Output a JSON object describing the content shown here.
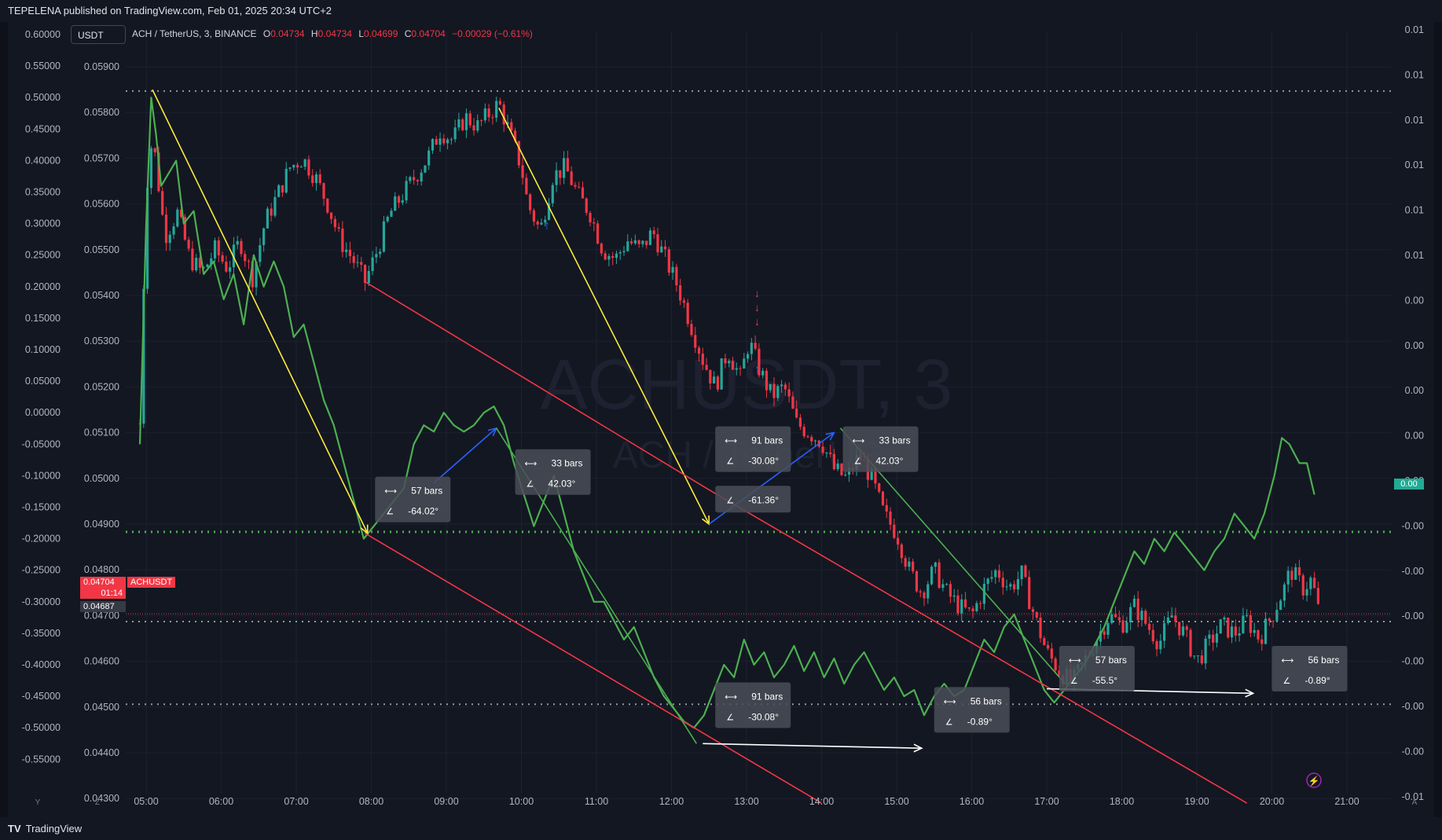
{
  "header": {
    "published": "TEPELENA published on TradingView.com, Feb 01, 2025 20:34 UTC+2"
  },
  "footer": {
    "brand": "TradingView"
  },
  "symbol_box": {
    "label": "USDT"
  },
  "legend": {
    "description": "ACH / TetherUS, 3, BINANCE",
    "o_label": "O",
    "o": "0.04734",
    "h_label": "H",
    "h": "0.04734",
    "l_label": "L",
    "l": "0.04699",
    "c_label": "C",
    "c": "0.04704",
    "change": "−0.00029 (−0.61%)"
  },
  "watermark": {
    "main": "ACHUSDT, 3",
    "sub": "ACH / TetherUS"
  },
  "price_tags": {
    "last": "0.04704",
    "symbol": "ACHUSDT",
    "countdown": "01:14",
    "prev": "0.04687",
    "right_value": "0.00"
  },
  "colors": {
    "up": "#26a69a",
    "down": "#f23645",
    "osc": "#4caf50",
    "yellow": "#ffeb3b",
    "red_line": "#f23645",
    "blue": "#2962ff",
    "white": "#ffffff",
    "green_dotted": "#4caf50"
  },
  "axes": {
    "osc_ticks": [
      "0.60000",
      "0.55000",
      "0.50000",
      "0.45000",
      "0.40000",
      "0.35000",
      "0.30000",
      "0.25000",
      "0.20000",
      "0.15000",
      "0.10000",
      "0.05000",
      "0.00000",
      "-0.05000",
      "-0.10000",
      "-0.15000",
      "-0.20000",
      "-0.25000",
      "-0.30000",
      "-0.35000",
      "-0.40000",
      "-0.45000",
      "-0.50000",
      "-0.55000"
    ],
    "price_ticks": [
      "0.05900",
      "0.05800",
      "0.05700",
      "0.05600",
      "0.05500",
      "0.05400",
      "0.05300",
      "0.05200",
      "0.05100",
      "0.05000",
      "0.04900",
      "0.04800",
      "0.04700",
      "0.04600",
      "0.04500",
      "0.04400",
      "0.04300"
    ],
    "right_ticks": [
      "0.01",
      "0.01",
      "0.01",
      "0.01",
      "0.01",
      "0.01",
      "0.00",
      "0.00",
      "0.00",
      "0.00",
      "0.00",
      "-0.00",
      "-0.00",
      "-0.00",
      "-0.00",
      "-0.00",
      "-0.00",
      "-0.01"
    ],
    "time_ticks": [
      "05:00",
      "06:00",
      "07:00",
      "08:00",
      "09:00",
      "10:00",
      "11:00",
      "12:00",
      "13:00",
      "14:00",
      "15:00",
      "16:00",
      "17:00",
      "18:00",
      "19:00",
      "20:00",
      "21:00"
    ],
    "corner_labels": [
      "Y",
      "Z",
      "A"
    ]
  },
  "chart_data": {
    "type": "candlestick",
    "symbol": "ACH / TetherUS",
    "interval": "3",
    "exchange": "BINANCE",
    "price_range": [
      0.0429,
      0.0592
    ],
    "osc_range": [
      -0.58,
      0.62
    ],
    "time_range": [
      "04:45",
      "21:35"
    ],
    "price_path": [
      [
        "04:55",
        0.0512
      ],
      [
        "05:00",
        0.0563
      ],
      [
        "05:05",
        0.0575
      ],
      [
        "05:15",
        0.0553
      ],
      [
        "05:25",
        0.0558
      ],
      [
        "05:35",
        0.0548
      ],
      [
        "05:45",
        0.0545
      ],
      [
        "05:55",
        0.055
      ],
      [
        "06:05",
        0.0546
      ],
      [
        "06:15",
        0.0552
      ],
      [
        "06:25",
        0.0544
      ],
      [
        "06:35",
        0.0556
      ],
      [
        "06:45",
        0.0562
      ],
      [
        "06:55",
        0.0568
      ],
      [
        "07:05",
        0.057
      ],
      [
        "07:15",
        0.0566
      ],
      [
        "07:25",
        0.056
      ],
      [
        "07:35",
        0.0552
      ],
      [
        "07:45",
        0.0548
      ],
      [
        "07:55",
        0.0543
      ],
      [
        "08:05",
        0.055
      ],
      [
        "08:15",
        0.0558
      ],
      [
        "08:25",
        0.0562
      ],
      [
        "08:35",
        0.0566
      ],
      [
        "08:45",
        0.057
      ],
      [
        "08:55",
        0.0576
      ],
      [
        "09:05",
        0.0574
      ],
      [
        "09:15",
        0.0579
      ],
      [
        "09:25",
        0.0577
      ],
      [
        "09:35",
        0.058
      ],
      [
        "09:42",
        0.0582
      ],
      [
        "09:50",
        0.0576
      ],
      [
        "10:00",
        0.0568
      ],
      [
        "10:05",
        0.056
      ],
      [
        "10:15",
        0.0554
      ],
      [
        "10:25",
        0.0566
      ],
      [
        "10:35",
        0.0568
      ],
      [
        "10:45",
        0.0562
      ],
      [
        "10:55",
        0.0558
      ],
      [
        "11:05",
        0.055
      ],
      [
        "11:15",
        0.0548
      ],
      [
        "11:25",
        0.0552
      ],
      [
        "11:35",
        0.055
      ],
      [
        "11:45",
        0.0554
      ],
      [
        "11:55",
        0.0548
      ],
      [
        "12:05",
        0.0542
      ],
      [
        "12:15",
        0.0534
      ],
      [
        "12:25",
        0.0526
      ],
      [
        "12:35",
        0.052
      ],
      [
        "12:45",
        0.0528
      ],
      [
        "12:55",
        0.0522
      ],
      [
        "13:02",
        0.053
      ],
      [
        "13:10",
        0.0524
      ],
      [
        "13:20",
        0.0518
      ],
      [
        "13:30",
        0.052
      ],
      [
        "13:40",
        0.0512
      ],
      [
        "13:50",
        0.051
      ],
      [
        "14:00",
        0.0508
      ],
      [
        "14:10",
        0.0502
      ],
      [
        "14:20",
        0.05
      ],
      [
        "14:30",
        0.0505
      ],
      [
        "14:40",
        0.05
      ],
      [
        "14:50",
        0.0492
      ],
      [
        "15:00",
        0.0488
      ],
      [
        "15:10",
        0.048
      ],
      [
        "15:20",
        0.0475
      ],
      [
        "15:30",
        0.048
      ],
      [
        "15:40",
        0.0475
      ],
      [
        "15:50",
        0.0472
      ],
      [
        "16:00",
        0.047
      ],
      [
        "16:10",
        0.0476
      ],
      [
        "16:20",
        0.048
      ],
      [
        "16:30",
        0.0476
      ],
      [
        "16:40",
        0.0479
      ],
      [
        "16:50",
        0.047
      ],
      [
        "17:00",
        0.0462
      ],
      [
        "17:10",
        0.0458
      ],
      [
        "17:20",
        0.0455
      ],
      [
        "17:30",
        0.046
      ],
      [
        "17:40",
        0.0465
      ],
      [
        "17:50",
        0.047
      ],
      [
        "18:00",
        0.0468
      ],
      [
        "18:10",
        0.0472
      ],
      [
        "18:20",
        0.0468
      ],
      [
        "18:30",
        0.0464
      ],
      [
        "18:40",
        0.047
      ],
      [
        "18:50",
        0.0466
      ],
      [
        "19:00",
        0.046
      ],
      [
        "19:10",
        0.0464
      ],
      [
        "19:20",
        0.0468
      ],
      [
        "19:30",
        0.0466
      ],
      [
        "19:40",
        0.0469
      ],
      [
        "19:50",
        0.0465
      ],
      [
        "20:00",
        0.047
      ],
      [
        "20:10",
        0.0476
      ],
      [
        "20:15",
        0.048
      ],
      [
        "20:25",
        0.0476
      ],
      [
        "20:32",
        0.0478
      ],
      [
        "20:38",
        0.047
      ]
    ],
    "oscillator": [
      [
        "04:55",
        -0.05
      ],
      [
        "05:00",
        0.3
      ],
      [
        "05:04",
        0.5
      ],
      [
        "05:08",
        0.44
      ],
      [
        "05:12",
        0.36
      ],
      [
        "05:18",
        0.38
      ],
      [
        "05:24",
        0.4
      ],
      [
        "05:30",
        0.3
      ],
      [
        "05:38",
        0.32
      ],
      [
        "05:46",
        0.22
      ],
      [
        "05:54",
        0.24
      ],
      [
        "06:02",
        0.18
      ],
      [
        "06:10",
        0.22
      ],
      [
        "06:18",
        0.14
      ],
      [
        "06:26",
        0.25
      ],
      [
        "06:34",
        0.2
      ],
      [
        "06:42",
        0.24
      ],
      [
        "06:50",
        0.2
      ],
      [
        "06:58",
        0.12
      ],
      [
        "07:06",
        0.14
      ],
      [
        "07:14",
        0.08
      ],
      [
        "07:22",
        0.02
      ],
      [
        "07:30",
        -0.02
      ],
      [
        "07:38",
        -0.08
      ],
      [
        "07:46",
        -0.14
      ],
      [
        "07:54",
        -0.2
      ],
      [
        "08:02",
        -0.18
      ],
      [
        "08:10",
        -0.16
      ],
      [
        "08:18",
        -0.14
      ],
      [
        "08:26",
        -0.12
      ],
      [
        "08:34",
        -0.05
      ],
      [
        "08:42",
        -0.02
      ],
      [
        "08:50",
        -0.03
      ],
      [
        "08:58",
        0.0
      ],
      [
        "09:06",
        -0.02
      ],
      [
        "09:14",
        -0.03
      ],
      [
        "09:22",
        -0.02
      ],
      [
        "09:30",
        0.0
      ],
      [
        "09:38",
        0.01
      ],
      [
        "09:46",
        -0.02
      ],
      [
        "09:54",
        -0.08
      ],
      [
        "10:02",
        -0.13
      ],
      [
        "10:10",
        -0.18
      ],
      [
        "10:18",
        -0.14
      ],
      [
        "10:26",
        -0.1
      ],
      [
        "10:34",
        -0.16
      ],
      [
        "10:42",
        -0.22
      ],
      [
        "10:50",
        -0.26
      ],
      [
        "10:58",
        -0.3
      ],
      [
        "11:06",
        -0.3
      ],
      [
        "11:14",
        -0.33
      ],
      [
        "11:22",
        -0.36
      ],
      [
        "11:30",
        -0.34
      ],
      [
        "11:38",
        -0.38
      ],
      [
        "11:46",
        -0.42
      ],
      [
        "11:54",
        -0.45
      ],
      [
        "12:02",
        -0.47
      ],
      [
        "12:10",
        -0.49
      ],
      [
        "12:18",
        -0.5
      ],
      [
        "12:26",
        -0.48
      ],
      [
        "12:34",
        -0.44
      ],
      [
        "12:42",
        -0.4
      ],
      [
        "12:50",
        -0.42
      ],
      [
        "12:58",
        -0.36
      ],
      [
        "13:06",
        -0.4
      ],
      [
        "13:14",
        -0.38
      ],
      [
        "13:22",
        -0.42
      ],
      [
        "13:30",
        -0.4
      ],
      [
        "13:38",
        -0.37
      ],
      [
        "13:46",
        -0.41
      ],
      [
        "13:54",
        -0.38
      ],
      [
        "14:02",
        -0.42
      ],
      [
        "14:10",
        -0.39
      ],
      [
        "14:18",
        -0.43
      ],
      [
        "14:26",
        -0.4
      ],
      [
        "14:34",
        -0.38
      ],
      [
        "14:42",
        -0.41
      ],
      [
        "14:50",
        -0.44
      ],
      [
        "14:58",
        -0.42
      ],
      [
        "15:06",
        -0.45
      ],
      [
        "15:14",
        -0.44
      ],
      [
        "15:22",
        -0.48
      ],
      [
        "15:30",
        -0.45
      ],
      [
        "15:38",
        -0.43
      ],
      [
        "15:46",
        -0.45
      ],
      [
        "15:54",
        -0.44
      ],
      [
        "16:02",
        -0.4
      ],
      [
        "16:10",
        -0.36
      ],
      [
        "16:18",
        -0.38
      ],
      [
        "16:26",
        -0.34
      ],
      [
        "16:34",
        -0.32
      ],
      [
        "16:42",
        -0.36
      ],
      [
        "16:50",
        -0.4
      ],
      [
        "16:58",
        -0.44
      ],
      [
        "17:06",
        -0.46
      ],
      [
        "17:14",
        -0.44
      ],
      [
        "17:22",
        -0.42
      ],
      [
        "17:30",
        -0.4
      ],
      [
        "17:38",
        -0.37
      ],
      [
        "17:46",
        -0.34
      ],
      [
        "17:54",
        -0.3
      ],
      [
        "18:02",
        -0.26
      ],
      [
        "18:10",
        -0.22
      ],
      [
        "18:18",
        -0.24
      ],
      [
        "18:26",
        -0.2
      ],
      [
        "18:34",
        -0.22
      ],
      [
        "18:42",
        -0.19
      ],
      [
        "18:50",
        -0.21
      ],
      [
        "18:58",
        -0.23
      ],
      [
        "19:06",
        -0.25
      ],
      [
        "19:14",
        -0.22
      ],
      [
        "19:22",
        -0.2
      ],
      [
        "19:30",
        -0.16
      ],
      [
        "19:38",
        -0.18
      ],
      [
        "19:46",
        -0.2
      ],
      [
        "19:54",
        -0.16
      ],
      [
        "20:02",
        -0.1
      ],
      [
        "20:08",
        -0.04
      ],
      [
        "20:14",
        -0.05
      ],
      [
        "20:22",
        -0.08
      ],
      [
        "20:28",
        -0.08
      ],
      [
        "20:34",
        -0.13
      ]
    ],
    "horizontal_lines": [
      {
        "axis": "price",
        "value": 0.05847,
        "style": "dotted",
        "color": "white"
      },
      {
        "axis": "price",
        "value": 0.04883,
        "style": "dotted",
        "color": "green"
      },
      {
        "axis": "price",
        "value": 0.04687,
        "style": "dotted",
        "color": "white"
      },
      {
        "axis": "price",
        "value": 0.04506,
        "style": "dotted",
        "color": "white"
      },
      {
        "axis": "price",
        "value": 0.04704,
        "style": "dotted",
        "color": "red"
      }
    ],
    "trend_lines": [
      {
        "color": "yellow",
        "from": [
          "05:05",
          0.0585
        ],
        "to": [
          "07:57",
          0.0488
        ],
        "arrow": true
      },
      {
        "color": "yellow",
        "from": [
          "09:42",
          0.0581
        ],
        "to": [
          "12:30",
          0.049
        ],
        "arrow": true
      },
      {
        "color": "red",
        "from": [
          "07:55",
          0.0543
        ],
        "to": [
          "12:30",
          0.04975
        ]
      },
      {
        "color": "red",
        "from": [
          "07:55",
          0.0488
        ],
        "to": [
          "14:00",
          0.0429
        ]
      },
      {
        "color": "red",
        "from": [
          "12:30",
          0.04975
        ],
        "to": [
          "19:40",
          0.0429
        ]
      },
      {
        "color": "blue",
        "from": [
          "08:50",
          0.0499
        ],
        "to": [
          "09:40",
          0.0511
        ],
        "arrow": true
      },
      {
        "color": "blue",
        "from": [
          "12:30",
          0.049
        ],
        "to": [
          "14:10",
          0.051
        ],
        "arrow": true
      },
      {
        "color": "osc",
        "from": [
          "09:40",
          0.0511
        ],
        "to": [
          "12:20",
          0.0442
        ]
      },
      {
        "color": "osc",
        "from": [
          "14:15",
          0.0511
        ],
        "to": [
          "17:15",
          0.0455
        ]
      },
      {
        "color": "white",
        "from": [
          "12:25",
          0.0442
        ],
        "to": [
          "15:20",
          0.0441
        ],
        "arrow": true
      },
      {
        "color": "white",
        "from": [
          "17:00",
          0.0454
        ],
        "to": [
          "19:45",
          0.0453
        ],
        "arrow": true
      }
    ],
    "measurements": [
      {
        "bars": "57 bars",
        "angle": "-64.02°",
        "at": [
          "08:03",
          0.0499
        ]
      },
      {
        "bars": "33 bars",
        "angle": "42.03°",
        "at": [
          "09:55",
          0.0505
        ]
      },
      {
        "bars": "91 bars",
        "angle": "-30.08°",
        "at": [
          "12:35",
          0.051
        ]
      },
      {
        "bars": "",
        "angle": "-61.36°",
        "at": [
          "12:35",
          0.0497
        ]
      },
      {
        "bars": "33 bars",
        "angle": "42.03°",
        "at": [
          "14:17",
          0.051
        ]
      },
      {
        "bars": "91 bars",
        "angle": "-30.08°",
        "at": [
          "12:35",
          0.0454
        ]
      },
      {
        "bars": "56 bars",
        "angle": "-0.89°",
        "at": [
          "15:30",
          0.0453
        ]
      },
      {
        "bars": "57 bars",
        "angle": "-55.5°",
        "at": [
          "17:10",
          0.0462
        ]
      },
      {
        "bars": "56 bars",
        "angle": "-0.89°",
        "at": [
          "20:00",
          0.0462
        ]
      }
    ]
  }
}
